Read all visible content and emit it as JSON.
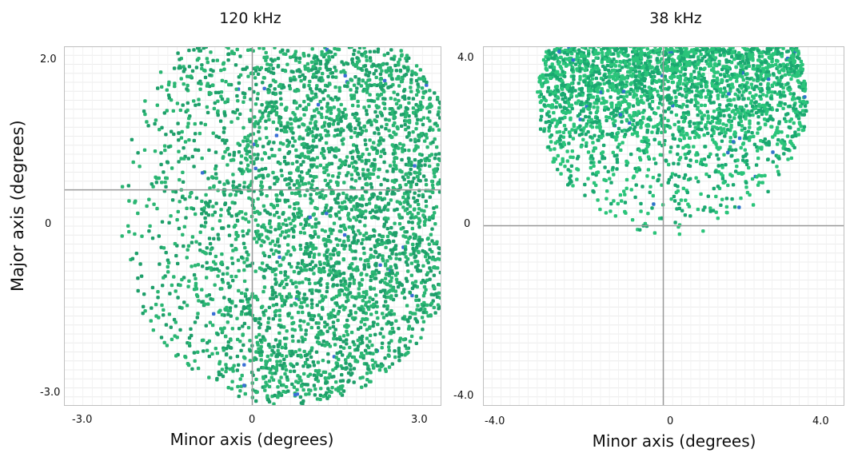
{
  "chart_data": [
    {
      "type": "scatter",
      "title": "120 kHz",
      "xlabel": "Minor axis (degrees)",
      "ylabel": "Major axis (degrees)",
      "xlim": [
        -3.0,
        3.0
      ],
      "ylim": [
        -3.0,
        2.0
      ],
      "xticks": [
        "-3.0",
        "0",
        "3.0"
      ],
      "yticks": [
        "2.0",
        "0",
        "-3.0"
      ],
      "grid": true,
      "colors": {
        "point": "#2bb673",
        "dense": "#1e9f6a",
        "outlier": "#3b6fd6"
      },
      "distribution": {
        "shape": "disk",
        "center": [
          0.6,
          -0.2
        ],
        "radius": 2.8,
        "clip_ymax": 2.0,
        "density_gradient": "denser toward +x"
      }
    },
    {
      "type": "scatter",
      "title": "38 kHz",
      "xlabel": "Minor axis (degrees)",
      "ylabel": "",
      "xlim": [
        -4.0,
        4.0
      ],
      "ylim": [
        -4.0,
        4.0
      ],
      "xticks": [
        "-4.0",
        "0",
        "4.0"
      ],
      "yticks": [
        "4.0",
        "0",
        "-4.0"
      ],
      "grid": true,
      "colors": {
        "point": "#2bc47a",
        "dense": "#1aa870",
        "outlier": "#2e74c9"
      },
      "distribution": {
        "shape": "disk",
        "center": [
          0.2,
          2.8
        ],
        "radius": 3.0,
        "clip_ymax": 4.0,
        "density_gradient": "denser toward top, sparse tail down to -4"
      }
    }
  ]
}
